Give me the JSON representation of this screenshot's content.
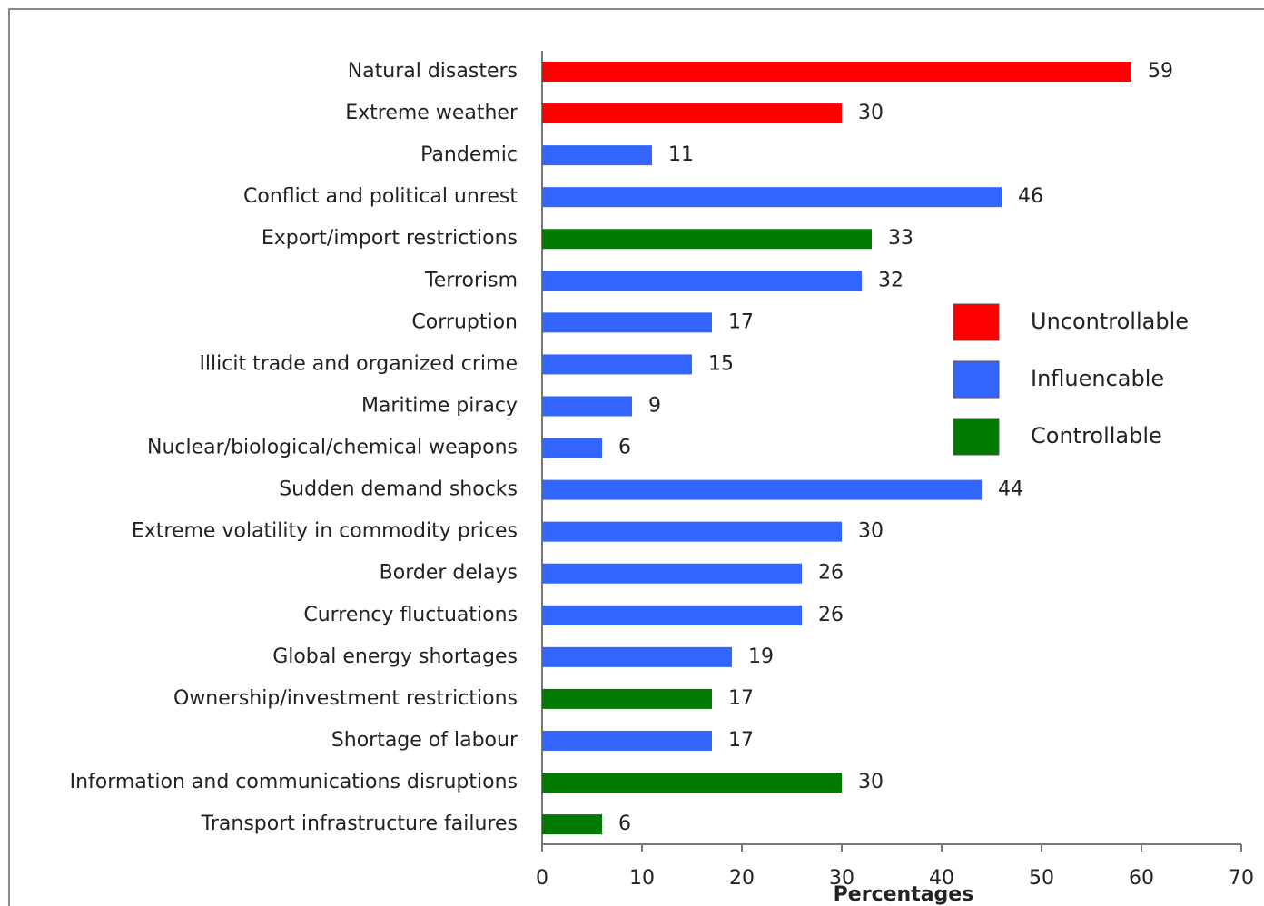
{
  "chart_data": {
    "type": "bar",
    "orientation": "horizontal",
    "x_label": "Percentages",
    "categories": [
      "Natural disasters",
      "Extreme weather",
      "Pandemic",
      "Conflict and political unrest",
      "Export/import restrictions",
      "Terrorism",
      "Corruption",
      "Illicit trade and organized crime",
      "Maritime piracy",
      "Nuclear/biological/chemical weapons",
      "Sudden demand shocks",
      "Extreme volatility in commodity prices",
      "Border delays",
      "Currency fluctuations",
      "Global energy shortages",
      "Ownership/investment restrictions",
      "Shortage of labour",
      "Information and communications disruptions",
      "Transport infrastructure failures"
    ],
    "series": [
      {
        "name": "Uncontrollable",
        "color": "#ff0000",
        "values": [
          59,
          30,
          null,
          null,
          null,
          null,
          null,
          null,
          null,
          null,
          null,
          null,
          null,
          null,
          null,
          null,
          null,
          null,
          null
        ]
      },
      {
        "name": "Influencable",
        "color": "#3366ff",
        "values": [
          null,
          null,
          11,
          46,
          null,
          32,
          17,
          15,
          9,
          6,
          44,
          30,
          26,
          26,
          19,
          null,
          17,
          null,
          null
        ]
      },
      {
        "name": "Controllable",
        "color": "#007a00",
        "values": [
          null,
          null,
          null,
          null,
          33,
          null,
          null,
          null,
          null,
          null,
          null,
          null,
          null,
          null,
          null,
          17,
          null,
          30,
          6
        ]
      }
    ],
    "xlim": [
      0,
      70
    ],
    "xticks": [
      0,
      10,
      20,
      30,
      40,
      50,
      60,
      70
    ],
    "grid": false
  }
}
